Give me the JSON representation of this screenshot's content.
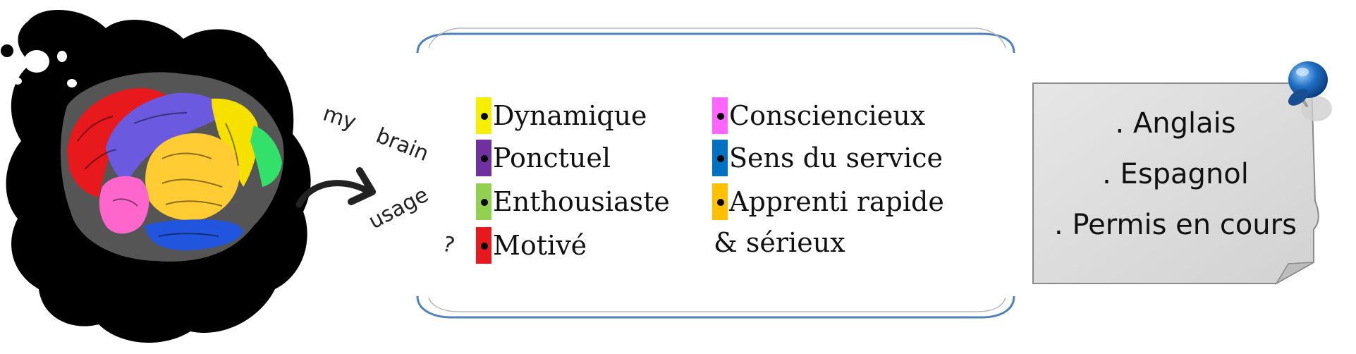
{
  "curve_text": {
    "word1": "my",
    "word2": "brain",
    "word3": "usage",
    "mark": "?"
  },
  "qualities": {
    "left": [
      {
        "label": "Dynamique",
        "color": "#f6f000"
      },
      {
        "label": "Ponctuel",
        "color": "#7030a0"
      },
      {
        "label": "Enthousiaste",
        "color": "#92d050"
      },
      {
        "label": "Motivé",
        "color": "#e8191c"
      }
    ],
    "right": [
      {
        "label": "Consciencieux",
        "color": "#ff66ff"
      },
      {
        "label": "Sens du service",
        "color": "#0070c0"
      },
      {
        "label": "Apprenti rapide",
        "color": "#ffc000"
      }
    ],
    "right_extra": "& sérieux"
  },
  "note": {
    "lines": [
      ". Anglais",
      ". Espagnol",
      ". Permis en cours"
    ],
    "pin_color": "#1f6fc5"
  },
  "brain_colors": {
    "red": "#e8191c",
    "purple": "#6b5ae0",
    "yellow_lobe": "#f6e000",
    "green": "#33e06a",
    "gold": "#ffcc33",
    "pink": "#ff66cc",
    "blue": "#2255dd"
  }
}
